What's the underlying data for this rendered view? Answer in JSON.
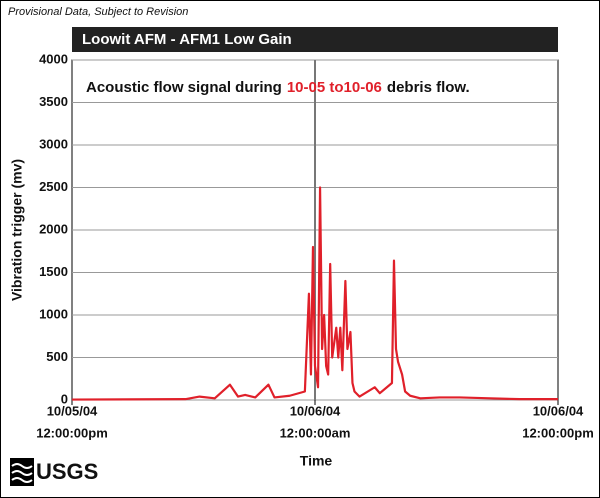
{
  "chart_data": {
    "type": "line",
    "header": "Provisional Data, Subject to Revision",
    "title": "Loowit AFM - AFM1 Low Gain",
    "annotation": [
      "Acoustic flow signal during",
      "10-05 to10-06",
      "debris flow."
    ],
    "xlabel": "Time",
    "ylabel": "Vibration trigger (mv)",
    "logo": "USGS",
    "xlim": [
      0,
      48
    ],
    "xticks": [
      {
        "value": 0,
        "label": [
          "10/05/04",
          "12:00:00pm"
        ]
      },
      {
        "value": 24,
        "label": [
          "10/06/04",
          "12:00:00am"
        ]
      },
      {
        "value": 48,
        "label": [
          "10/06/04",
          "12:00:00pm"
        ]
      }
    ],
    "ylim": [
      0,
      4000
    ],
    "yticks": [
      0,
      500,
      1000,
      1500,
      2000,
      2500,
      3000,
      3500,
      4000
    ],
    "grid": true,
    "series": [
      {
        "color": "#e0202a",
        "x": [
          0,
          11.2,
          12.6,
          14.1,
          15.6,
          16.4,
          17.1,
          18.1,
          19.4,
          20.0,
          21.5,
          23.0,
          23.4,
          23.6,
          23.8,
          24.0,
          24.3,
          24.5,
          24.7,
          24.9,
          25.1,
          25.3,
          25.5,
          25.7,
          26.1,
          26.3,
          26.5,
          26.7,
          27.0,
          27.2,
          27.5,
          27.7,
          27.9,
          28.4,
          29.9,
          30.4,
          31.6,
          31.8,
          32.0,
          32.2,
          32.6,
          32.9,
          33.4,
          34.4,
          36.3,
          38.3,
          41.3,
          44.2,
          48
        ],
        "values": [
          5,
          10,
          40,
          20,
          180,
          40,
          60,
          30,
          180,
          30,
          50,
          100,
          1250,
          300,
          1800,
          400,
          150,
          2500,
          600,
          1000,
          400,
          300,
          1600,
          500,
          850,
          500,
          850,
          350,
          1400,
          600,
          800,
          200,
          100,
          40,
          150,
          80,
          200,
          1640,
          600,
          450,
          300,
          100,
          50,
          20,
          30,
          30,
          20,
          10,
          10
        ]
      }
    ]
  }
}
